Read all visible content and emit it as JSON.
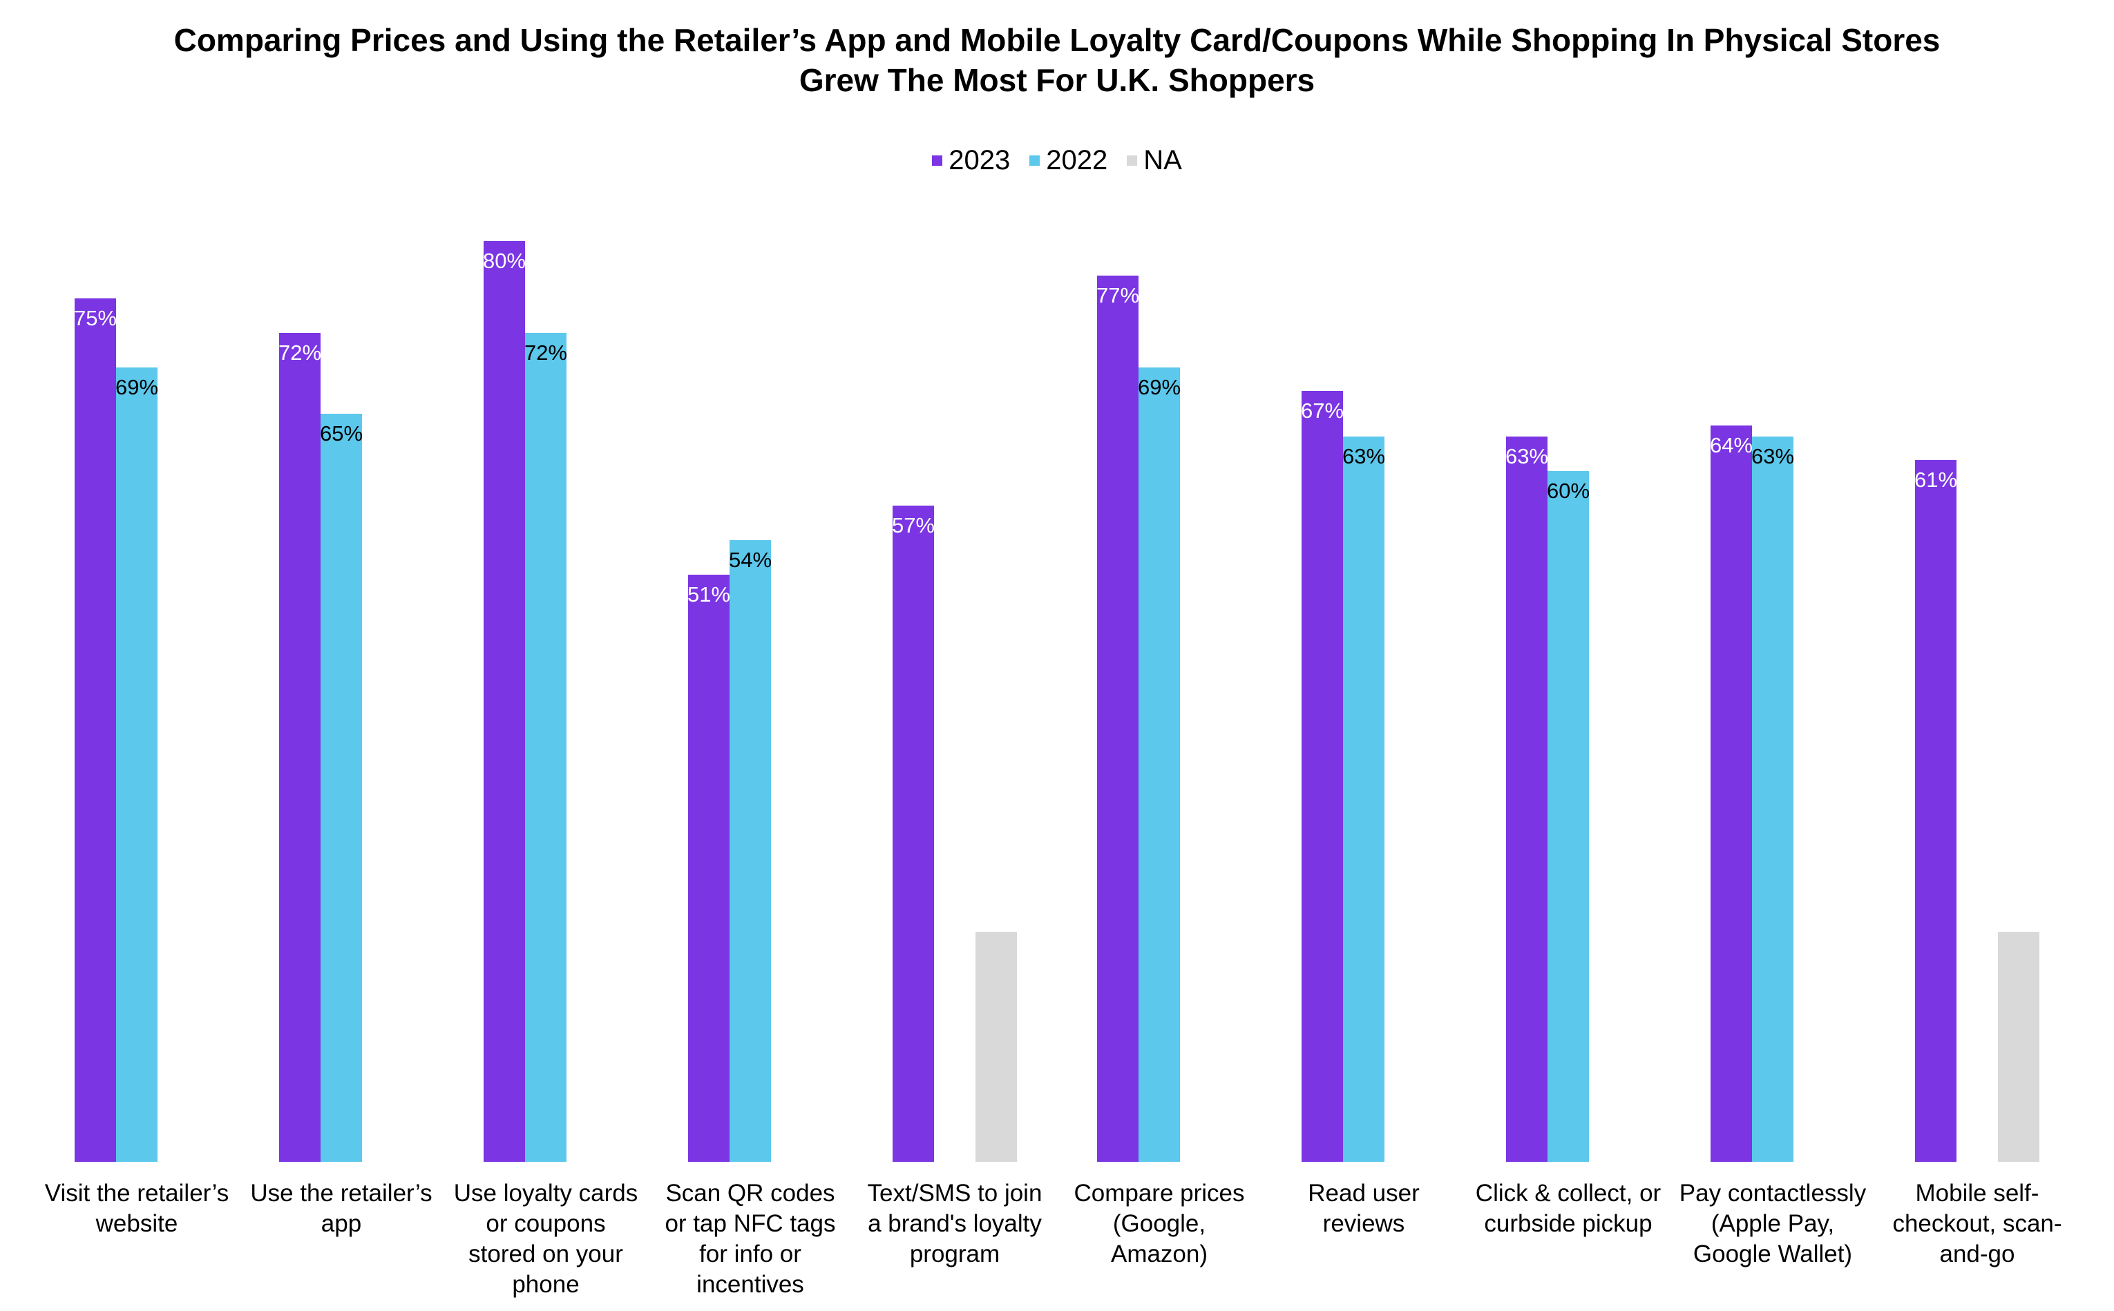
{
  "title_lines": [
    "Comparing Prices and Using the Retailer’s App and Mobile Loyalty Card/Coupons While Shopping In Physical Stores",
    "Grew The Most For U.K. Shoppers"
  ],
  "legend": {
    "items": [
      {
        "label": "2023",
        "color": "#7B35E3"
      },
      {
        "label": "2022",
        "color": "#5CC8EC"
      },
      {
        "label": "NA",
        "color": "#D9D9D9"
      }
    ]
  },
  "chart_data": {
    "type": "bar",
    "title": "Comparing Prices and Using the Retailer’s App and Mobile Loyalty Card/Coupons While Shopping In Physical Stores Grew The Most For U.K. Shoppers",
    "categories": [
      "Visit the retailer’s website",
      "Use the retailer’s app",
      "Use loyalty cards or coupons stored on your phone",
      "Scan QR codes or tap NFC tags for info or incentives",
      "Text/SMS to join a brand's loyalty program",
      "Compare prices (Google, Amazon)",
      "Read user reviews",
      "Click & collect, or curbside pickup",
      "Pay contactlessly (Apple Pay, Google Wallet)",
      "Mobile self-checkout, scan-and-go"
    ],
    "series": [
      {
        "name": "2023",
        "color": "#7B35E3",
        "label_color": "#ffffff",
        "values": [
          75,
          72,
          80,
          51,
          57,
          77,
          67,
          63,
          64,
          61
        ]
      },
      {
        "name": "2022",
        "color": "#5CC8EC",
        "label_color": "#000000",
        "values": [
          69,
          65,
          72,
          54,
          null,
          69,
          63,
          60,
          63,
          null
        ]
      }
    ],
    "na_series": {
      "name": "NA",
      "color": "#D9D9D9",
      "flags": [
        false,
        false,
        false,
        false,
        true,
        false,
        false,
        false,
        false,
        true
      ],
      "drawn_height_pct": 20
    },
    "value_suffix": "%",
    "xlabel": "",
    "ylabel": "",
    "ylim": [
      0,
      84
    ],
    "grid": false,
    "axis_lines": false,
    "legend_position": "top"
  }
}
